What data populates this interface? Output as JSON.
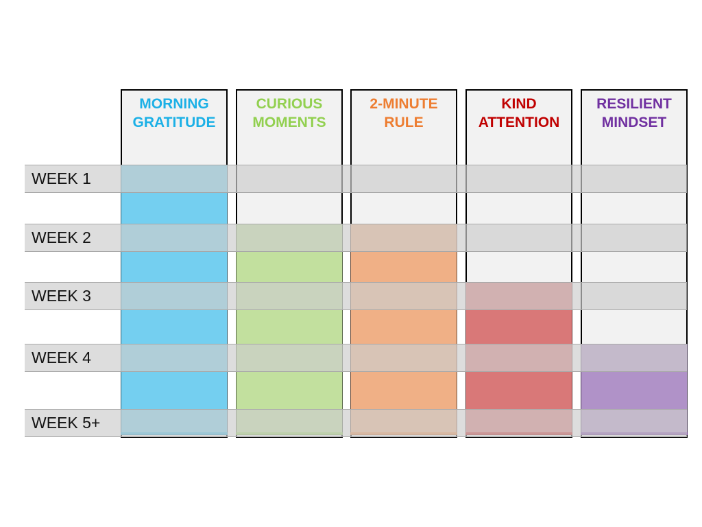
{
  "habits": [
    {
      "title": "MORNING\nGRATITUDE",
      "color": "#1bb0e6",
      "fill": "#74cff0",
      "start_week": 1
    },
    {
      "title": "CURIOUS\nMOMENTS",
      "color": "#92d050",
      "fill": "#c2e09e",
      "start_week": 2
    },
    {
      "title": "2-MINUTE\nRULE",
      "color": "#ed7d31",
      "fill": "#f0b086",
      "start_week": 2
    },
    {
      "title": "KIND\nATTENTION",
      "color": "#c00000",
      "fill": "#d97878",
      "start_week": 3
    },
    {
      "title": "RESILIENT\nMINDSET",
      "color": "#7030a0",
      "fill": "#b092c8",
      "start_week": 4
    }
  ],
  "weeks": [
    "WEEK 1",
    "WEEK 2",
    "WEEK 3",
    "WEEK 4",
    "WEEK 5+"
  ]
}
